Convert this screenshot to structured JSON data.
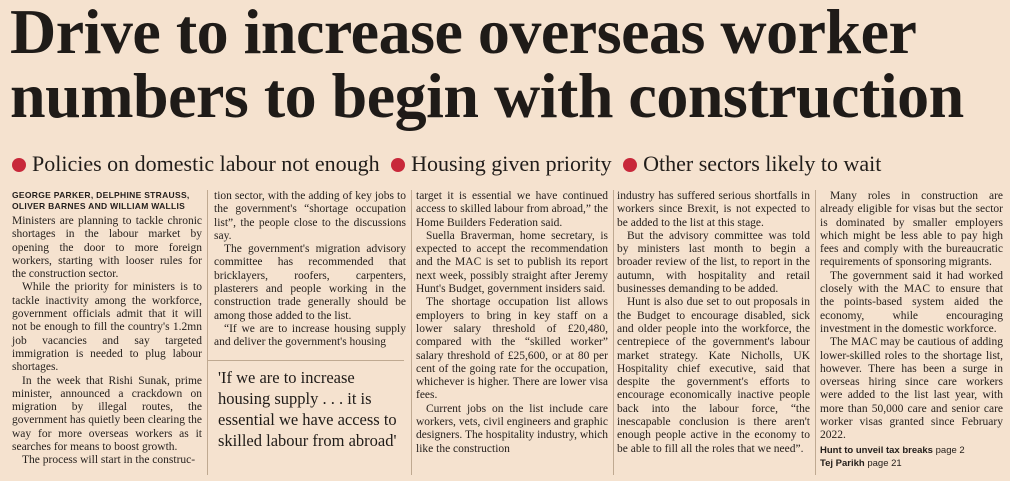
{
  "headline": {
    "line1": "Drive to increase overseas worker",
    "line2": "numbers to begin with construction"
  },
  "bullets": [
    "Policies on domestic labour not enough",
    "Housing given priority",
    "Other sectors likely to wait"
  ],
  "byline": {
    "line1": "GEORGE PARKER, DELPHINE STRAUSS,",
    "line2": "OLIVER BARNES AND WILLIAM WALLIS"
  },
  "pull_quote": "'If we are to increase housing supply . . . it is essential we have access to skilled labour from abroad'",
  "columns": {
    "col1": [
      "Ministers are planning to tackle chronic shortages in the labour market by opening the door to more foreign workers, starting with looser rules for the construction sector.",
      "While the priority for ministers is to tackle inactivity among the workforce, government officials admit that it will not be enough to fill the country's 1.2mn job vacancies and say targeted immigration is needed to plug labour shortages.",
      "In the week that Rishi Sunak, prime minister, announced a crackdown on migration by illegal routes, the government has quietly been clearing the way for more overseas workers as it searches for means to boost growth.",
      "The process will start in the construc-"
    ],
    "col2": [
      "tion sector, with the adding of key jobs to the government's “shortage occupation list”, the people close to the discussions say.",
      "The government's migration advisory committee has recommended that bricklayers, roofers, carpenters, plasterers and people working in the construction trade generally should be among those added to the list.",
      "“If we are to increase housing supply and deliver the government's housing"
    ],
    "col3": [
      "target it is essential we have continued access to skilled labour from abroad,” the Home Builders Federation said.",
      "Suella Braverman, home secretary, is expected to accept the recommendation and the MAC is set to publish its report next week, possibly straight after Jeremy Hunt's Budget, government insiders said.",
      "The shortage occupation list allows employers to bring in key staff on a lower salary threshold of £20,480, compared with the “skilled worker” salary threshold of £25,600, or at 80 per cent of the going rate for the occupation, whichever is higher. There are lower visa fees.",
      "Current jobs on the list include care workers, vets, civil engineers and graphic designers. The hospitality industry, which like the construction"
    ],
    "col4": [
      "industry has suffered serious shortfalls in workers since Brexit, is not expected to be added to the list at this stage.",
      "But the advisory committee was told by ministers last month to begin a broader review of the list, to report in the autumn, with hospitality and retail businesses demanding to be added.",
      "Hunt is also due set to out proposals in the Budget to encourage disabled, sick and older people into the workforce, the centrepiece of the government's labour market strategy. Kate Nicholls, UK Hospitality chief executive, said that despite the government's efforts to encourage economically inactive people back into the labour force, “the inescapable conclusion is there aren't enough people active in the economy to be able to fill all the roles that we need”."
    ],
    "col5": [
      "Many roles in construction are already eligible for visas but the sector is dominated by smaller employers which might be less able to pay high fees and comply with the bureaucratic requirements of sponsoring migrants.",
      "The government said it had worked closely with the MAC to ensure that the points-based system aided the economy, while encouraging investment in the domestic workforce.",
      "The MAC may be cautious of adding lower-skilled roles to the shortage list, however. There has been a surge in overseas hiring since care workers were added to the list last year, with more than 50,000 care and senior care worker visas granted since February 2022."
    ]
  },
  "cross_refs": [
    {
      "label": "Hunt to unveil tax breaks",
      "page": "page 2"
    },
    {
      "label": "Tej Parikh",
      "page": "page 21"
    }
  ],
  "colors": {
    "background": "#f5e2cf",
    "text": "#211d1a",
    "bullet": "#c8283a"
  }
}
